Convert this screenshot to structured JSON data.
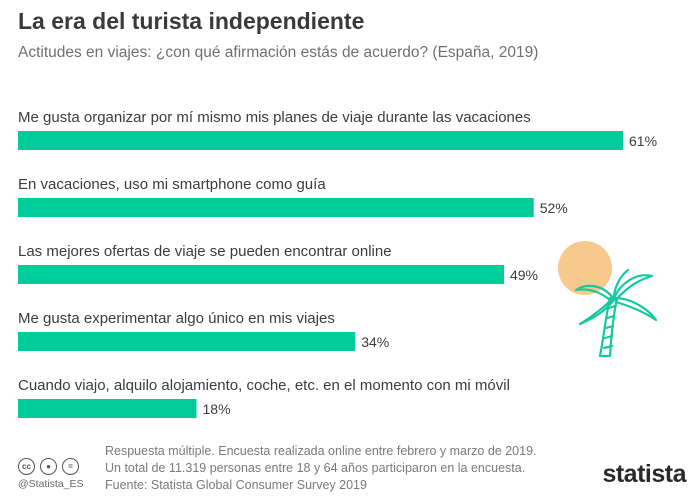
{
  "chart_data": {
    "type": "bar",
    "orientation": "horizontal",
    "title": "La era del turista independiente",
    "subtitle": "Actitudes en viajes: ¿con qué afirmación estás de acuerdo? (España, 2019)",
    "categories": [
      "Me gusta organizar por mí mismo mis planes de viaje durante las vacaciones",
      "En vacaciones, uso mi smartphone como guía",
      "Las mejores ofertas de viaje se pueden encontrar online",
      "Me gusta experimentar algo único en mis viajes",
      "Cuando viajo, alquilo alojamiento, coche, etc. en el momento con mi móvil"
    ],
    "values": [
      61,
      52,
      49,
      34,
      18
    ],
    "value_labels": [
      "61%",
      "52%",
      "49%",
      "34%",
      "18%"
    ],
    "unit": "%",
    "xlim": [
      0,
      100
    ],
    "grid": false,
    "legend": "none",
    "bar_color": "#00CC99"
  },
  "footer": {
    "notes": [
      "Respuesta múltiple. Encuesta realizada online entre febrero y marzo de 2019.",
      "Un total de 11.319 personas entre 18 y 64 años participaron en la encuesta.",
      "Fuente: Statista Global Consumer Survey 2019"
    ],
    "handle": "@Statista_ES",
    "brand": "statista"
  },
  "icons": {
    "cc": "cc-license-icon",
    "by": "attribution-icon",
    "nd": "no-derivatives-icon",
    "decor": "palm-tree-sun-icon"
  }
}
